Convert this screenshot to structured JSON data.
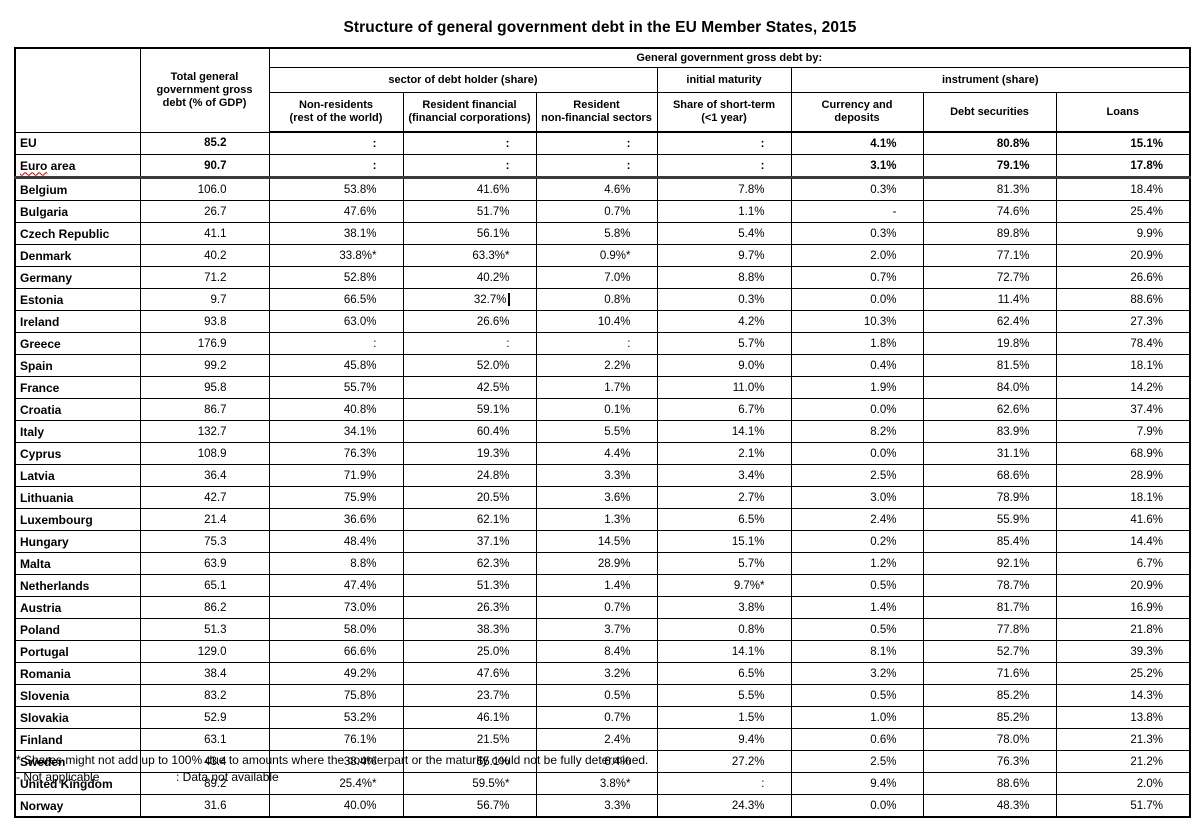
{
  "title": "Structure of general government debt in the EU Member States, 2015",
  "colors": {
    "background": "#ffffff",
    "text": "#000000",
    "grid_vertical": "#000000",
    "grid_horizontal": "#4d4d4d",
    "spellcheck_squiggle": "#cc0000"
  },
  "footnotes": {
    "shares": "* Shares might not add up to 100% due to amounts where the counterpart or the maturity could not be fully determined.",
    "not_applicable": "- Not applicable",
    "not_available": ": Data not available"
  },
  "chart_data": {
    "type": "table",
    "title": "Structure of general government debt in the EU Member States, 2015",
    "header": {
      "country_col": "",
      "total_col": "Total general\ngovernment gross\ndebt (% of GDP)",
      "span_top": "General government gross debt by:",
      "groups": [
        {
          "label": "sector of debt holder (share)",
          "cols": [
            "Non-residents\n(rest of the world)",
            "Resident financial\n(financial corporations)",
            "Resident\nnon-financial sectors"
          ]
        },
        {
          "label": "initial maturity",
          "cols": [
            "Share of short-term\n(<1 year)"
          ]
        },
        {
          "label": "instrument (share)",
          "cols": [
            "Currency and\ndeposits",
            "Debt securities",
            "Loans"
          ]
        }
      ]
    },
    "columns_flat": [
      "Total general government gross debt (% of GDP)",
      "Non-residents (rest of the world)",
      "Resident financial (financial corporations)",
      "Resident non-financial sectors",
      "Share of short-term (<1 year)",
      "Currency and deposits",
      "Debt securities",
      "Loans"
    ],
    "rows": [
      {
        "country": "EU",
        "bold": true,
        "values": [
          "85.2",
          ":",
          ":",
          ":",
          ":",
          "4.1%",
          "80.8%",
          "15.1%"
        ]
      },
      {
        "country": "Euro area",
        "bold": true,
        "squiggle": true,
        "values": [
          "90.7",
          ":",
          ":",
          ":",
          ":",
          "3.1%",
          "79.1%",
          "17.8%"
        ]
      },
      {
        "country": "Belgium",
        "values": [
          "106.0",
          "53.8%",
          "41.6%",
          "4.6%",
          "7.8%",
          "0.3%",
          "81.3%",
          "18.4%"
        ]
      },
      {
        "country": "Bulgaria",
        "values": [
          "26.7",
          "47.6%",
          "51.7%",
          "0.7%",
          "1.1%",
          "-",
          "74.6%",
          "25.4%"
        ]
      },
      {
        "country": "Czech Republic",
        "values": [
          "41.1",
          "38.1%",
          "56.1%",
          "5.8%",
          "5.4%",
          "0.3%",
          "89.8%",
          "9.9%"
        ]
      },
      {
        "country": "Denmark",
        "values": [
          "40.2",
          "33.8%*",
          "63.3%*",
          "0.9%*",
          "9.7%",
          "2.0%",
          "77.1%",
          "20.9%"
        ]
      },
      {
        "country": "Germany",
        "values": [
          "71.2",
          "52.8%",
          "40.2%",
          "7.0%",
          "8.8%",
          "0.7%",
          "72.7%",
          "26.6%"
        ]
      },
      {
        "country": "Estonia",
        "cursor_col": 2,
        "values": [
          "9.7",
          "66.5%",
          "32.7%",
          "0.8%",
          "0.3%",
          "0.0%",
          "11.4%",
          "88.6%"
        ]
      },
      {
        "country": "Ireland",
        "values": [
          "93.8",
          "63.0%",
          "26.6%",
          "10.4%",
          "4.2%",
          "10.3%",
          "62.4%",
          "27.3%"
        ]
      },
      {
        "country": "Greece",
        "values": [
          "176.9",
          ":",
          ":",
          ":",
          "5.7%",
          "1.8%",
          "19.8%",
          "78.4%"
        ]
      },
      {
        "country": "Spain",
        "values": [
          "99.2",
          "45.8%",
          "52.0%",
          "2.2%",
          "9.0%",
          "0.4%",
          "81.5%",
          "18.1%"
        ]
      },
      {
        "country": "France",
        "values": [
          "95.8",
          "55.7%",
          "42.5%",
          "1.7%",
          "11.0%",
          "1.9%",
          "84.0%",
          "14.2%"
        ]
      },
      {
        "country": "Croatia",
        "values": [
          "86.7",
          "40.8%",
          "59.1%",
          "0.1%",
          "6.7%",
          "0.0%",
          "62.6%",
          "37.4%"
        ]
      },
      {
        "country": "Italy",
        "values": [
          "132.7",
          "34.1%",
          "60.4%",
          "5.5%",
          "14.1%",
          "8.2%",
          "83.9%",
          "7.9%"
        ]
      },
      {
        "country": "Cyprus",
        "values": [
          "108.9",
          "76.3%",
          "19.3%",
          "4.4%",
          "2.1%",
          "0.0%",
          "31.1%",
          "68.9%"
        ]
      },
      {
        "country": "Latvia",
        "values": [
          "36.4",
          "71.9%",
          "24.8%",
          "3.3%",
          "3.4%",
          "2.5%",
          "68.6%",
          "28.9%"
        ]
      },
      {
        "country": "Lithuania",
        "values": [
          "42.7",
          "75.9%",
          "20.5%",
          "3.6%",
          "2.7%",
          "3.0%",
          "78.9%",
          "18.1%"
        ]
      },
      {
        "country": "Luxembourg",
        "values": [
          "21.4",
          "36.6%",
          "62.1%",
          "1.3%",
          "6.5%",
          "2.4%",
          "55.9%",
          "41.6%"
        ]
      },
      {
        "country": "Hungary",
        "values": [
          "75.3",
          "48.4%",
          "37.1%",
          "14.5%",
          "15.1%",
          "0.2%",
          "85.4%",
          "14.4%"
        ]
      },
      {
        "country": "Malta",
        "values": [
          "63.9",
          "8.8%",
          "62.3%",
          "28.9%",
          "5.7%",
          "1.2%",
          "92.1%",
          "6.7%"
        ]
      },
      {
        "country": "Netherlands",
        "values": [
          "65.1",
          "47.4%",
          "51.3%",
          "1.4%",
          "9.7%*",
          "0.5%",
          "78.7%",
          "20.9%"
        ]
      },
      {
        "country": "Austria",
        "values": [
          "86.2",
          "73.0%",
          "26.3%",
          "0.7%",
          "3.8%",
          "1.4%",
          "81.7%",
          "16.9%"
        ]
      },
      {
        "country": "Poland",
        "values": [
          "51.3",
          "58.0%",
          "38.3%",
          "3.7%",
          "0.8%",
          "0.5%",
          "77.8%",
          "21.8%"
        ]
      },
      {
        "country": "Portugal",
        "values": [
          "129.0",
          "66.6%",
          "25.0%",
          "8.4%",
          "14.1%",
          "8.1%",
          "52.7%",
          "39.3%"
        ]
      },
      {
        "country": "Romania",
        "values": [
          "38.4",
          "49.2%",
          "47.6%",
          "3.2%",
          "6.5%",
          "3.2%",
          "71.6%",
          "25.2%"
        ]
      },
      {
        "country": "Slovenia",
        "values": [
          "83.2",
          "75.8%",
          "23.7%",
          "0.5%",
          "5.5%",
          "0.5%",
          "85.2%",
          "14.3%"
        ]
      },
      {
        "country": "Slovakia",
        "values": [
          "52.9",
          "53.2%",
          "46.1%",
          "0.7%",
          "1.5%",
          "1.0%",
          "85.2%",
          "13.8%"
        ]
      },
      {
        "country": "Finland",
        "values": [
          "63.1",
          "76.1%",
          "21.5%",
          "2.4%",
          "9.4%",
          "0.6%",
          "78.0%",
          "21.3%"
        ]
      },
      {
        "country": "Sweden",
        "values": [
          "43.4",
          "38.4%",
          "55.1%",
          "6.4%",
          "27.2%",
          "2.5%",
          "76.3%",
          "21.2%"
        ]
      },
      {
        "country": "United Kingdom",
        "values": [
          "89.2",
          "25.4%*",
          "59.5%*",
          "3.8%*",
          ":",
          "9.4%",
          "88.6%",
          "2.0%"
        ]
      },
      {
        "country": "Norway",
        "values": [
          "31.6",
          "40.0%",
          "56.7%",
          "3.3%",
          "24.3%",
          "0.0%",
          "48.3%",
          "51.7%"
        ]
      }
    ]
  }
}
